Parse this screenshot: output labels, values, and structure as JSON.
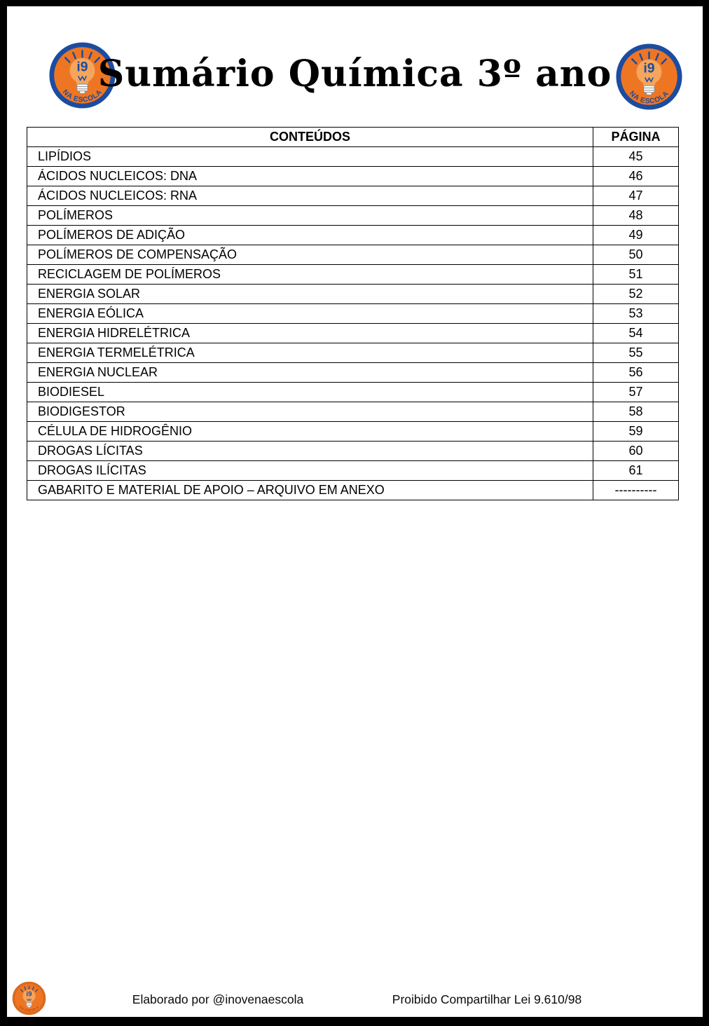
{
  "header": {
    "title": "Sumário Química 3º ano"
  },
  "logo": {
    "name": "i9 na escola",
    "monogram": "i9",
    "arc_text": "NA ESCOLA",
    "colors": {
      "orange": "#EE7623",
      "ring_blue": "#1C4CA0",
      "bulb_orange": "#F5A55C",
      "navy_text": "#1C4CA0",
      "footer_ring_orange": "#D96A1E",
      "footer_arc_orange": "#C04A1E"
    }
  },
  "table": {
    "headers": {
      "contents": "CONTEÚDOS",
      "page": "PÁGINA"
    },
    "rows": [
      {
        "content": "LIPÍDIOS",
        "page": "45"
      },
      {
        "content": "ÁCIDOS NUCLEICOS: DNA",
        "page": "46"
      },
      {
        "content": "ÁCIDOS NUCLEICOS: RNA",
        "page": "47"
      },
      {
        "content": "POLÍMEROS",
        "page": "48"
      },
      {
        "content": "POLÍMEROS DE ADIÇÃO",
        "page": "49"
      },
      {
        "content": "POLÍMEROS DE COMPENSAÇÃO",
        "page": "50"
      },
      {
        "content": "RECICLAGEM DE POLÍMEROS",
        "page": "51"
      },
      {
        "content": "ENERGIA SOLAR",
        "page": "52"
      },
      {
        "content": "ENERGIA EÓLICA",
        "page": "53"
      },
      {
        "content": "ENERGIA HIDRELÉTRICA",
        "page": "54"
      },
      {
        "content": "ENERGIA TERMELÉTRICA",
        "page": "55"
      },
      {
        "content": "ENERGIA NUCLEAR",
        "page": "56"
      },
      {
        "content": "BIODIESEL",
        "page": "57"
      },
      {
        "content": "BIODIGESTOR",
        "page": "58"
      },
      {
        "content": "CÉLULA DE HIDROGÊNIO",
        "page": "59"
      },
      {
        "content": "DROGAS LÍCITAS",
        "page": "60"
      },
      {
        "content": "DROGAS ILÍCITAS",
        "page": "61"
      },
      {
        "content": "GABARITO E MATERIAL DE APOIO – ARQUIVO EM ANEXO",
        "page": "----------"
      }
    ]
  },
  "footer": {
    "left": "Elaborado por @inovenaescola",
    "right": "Proibido Compartilhar Lei 9.610/98"
  }
}
